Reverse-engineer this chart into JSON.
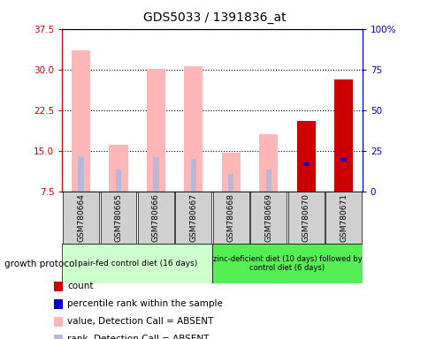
{
  "title": "GDS5033 / 1391836_at",
  "samples": [
    "GSM780664",
    "GSM780665",
    "GSM780666",
    "GSM780667",
    "GSM780668",
    "GSM780669",
    "GSM780670",
    "GSM780671"
  ],
  "value_absent": [
    33.5,
    16.2,
    30.1,
    30.6,
    14.7,
    18.0,
    null,
    null
  ],
  "rank_absent_bottom": [
    7.5,
    7.5,
    7.5,
    7.5,
    7.5,
    7.5,
    null,
    null
  ],
  "rank_absent_top": [
    14.0,
    11.5,
    13.8,
    13.5,
    10.8,
    11.5,
    null,
    null
  ],
  "count_value": [
    null,
    null,
    null,
    null,
    null,
    null,
    20.5,
    28.2
  ],
  "percentile_rank": [
    null,
    null,
    null,
    null,
    null,
    null,
    12.5,
    13.3
  ],
  "ylim_left": [
    7.5,
    37.5
  ],
  "ylim_right": [
    0,
    100
  ],
  "yticks_left": [
    7.5,
    15.0,
    22.5,
    30.0,
    37.5
  ],
  "yticks_right": [
    0,
    25,
    50,
    75,
    100
  ],
  "ytick_labels_right": [
    "0",
    "25",
    "50",
    "75",
    "100%"
  ],
  "color_value_absent": "#ffb6b6",
  "color_rank_absent": "#b8b8d8",
  "color_count": "#cc0000",
  "color_percentile": "#0000cc",
  "group1_label": "pair-fed control diet (16 days)",
  "group2_label": "zinc-deficient diet (10 days) followed by\ncontrol diet (6 days)",
  "group1_color": "#ccffcc",
  "group2_color": "#55ee55",
  "protocol_label": "growth protocol",
  "bar_width": 0.5,
  "axis_color_left": "#cc0000",
  "axis_color_right": "#0000cc",
  "background_color": "#ffffff",
  "title_fontsize": 10
}
